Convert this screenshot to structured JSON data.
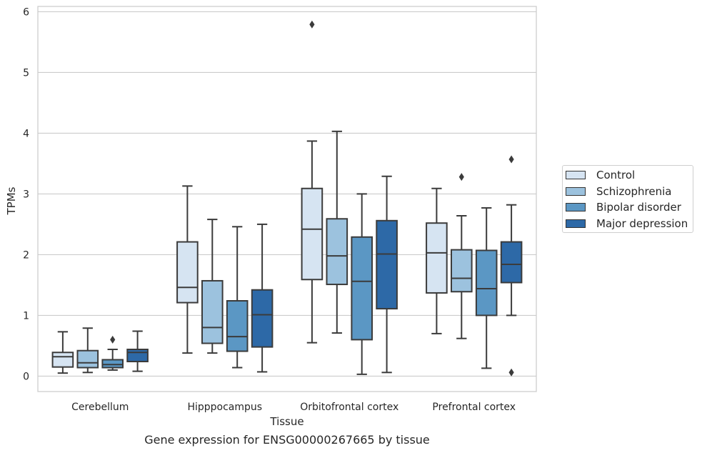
{
  "chart_data": {
    "type": "box",
    "title": "",
    "xlabel": "Tissue",
    "ylabel": "TPMs",
    "caption": "Gene expression for ENSG00000267665 by tissue",
    "ylim": [
      -0.25,
      6.1
    ],
    "yticks": [
      "0",
      "1",
      "2",
      "3",
      "4",
      "5",
      "6"
    ],
    "grid": "horizontal",
    "legend_position": "right",
    "categories": [
      "Cerebellum",
      "Hipppocampus",
      "Orbitofrontal cortex",
      "Prefrontal cortex"
    ],
    "series": [
      {
        "name": "Control",
        "color": "#d6e4f2",
        "boxes": [
          {
            "whislo": 0.05,
            "q1": 0.15,
            "med": 0.32,
            "q3": 0.39,
            "whishi": 0.73,
            "fliers": []
          },
          {
            "whislo": 0.38,
            "q1": 1.21,
            "med": 1.46,
            "q3": 2.21,
            "whishi": 3.13,
            "fliers": []
          },
          {
            "whislo": 0.55,
            "q1": 1.59,
            "med": 2.42,
            "q3": 3.09,
            "whishi": 3.87,
            "fliers": [
              5.79
            ]
          },
          {
            "whislo": 0.7,
            "q1": 1.37,
            "med": 2.03,
            "q3": 2.52,
            "whishi": 3.09,
            "fliers": []
          }
        ]
      },
      {
        "name": "Schizophrenia",
        "color": "#9cc2de",
        "boxes": [
          {
            "whislo": 0.06,
            "q1": 0.14,
            "med": 0.22,
            "q3": 0.42,
            "whishi": 0.79,
            "fliers": []
          },
          {
            "whislo": 0.38,
            "q1": 0.54,
            "med": 0.8,
            "q3": 1.57,
            "whishi": 2.58,
            "fliers": []
          },
          {
            "whislo": 0.71,
            "q1": 1.51,
            "med": 1.98,
            "q3": 2.59,
            "whishi": 4.03,
            "fliers": []
          },
          {
            "whislo": 0.62,
            "q1": 1.39,
            "med": 1.61,
            "q3": 2.08,
            "whishi": 2.64,
            "fliers": [
              3.28
            ]
          }
        ]
      },
      {
        "name": "Bipolar disorder",
        "color": "#5b97c4",
        "boxes": [
          {
            "whislo": 0.1,
            "q1": 0.14,
            "med": 0.19,
            "q3": 0.27,
            "whishi": 0.44,
            "fliers": [
              0.6
            ]
          },
          {
            "whislo": 0.14,
            "q1": 0.41,
            "med": 0.65,
            "q3": 1.24,
            "whishi": 2.46,
            "fliers": []
          },
          {
            "whislo": 0.03,
            "q1": 0.6,
            "med": 1.56,
            "q3": 2.29,
            "whishi": 3.0,
            "fliers": []
          },
          {
            "whislo": 0.13,
            "q1": 1.0,
            "med": 1.44,
            "q3": 2.07,
            "whishi": 2.77,
            "fliers": []
          }
        ]
      },
      {
        "name": "Major depression",
        "color": "#2d69a7",
        "boxes": [
          {
            "whislo": 0.08,
            "q1": 0.24,
            "med": 0.39,
            "q3": 0.44,
            "whishi": 0.74,
            "fliers": []
          },
          {
            "whislo": 0.07,
            "q1": 0.48,
            "med": 1.01,
            "q3": 1.42,
            "whishi": 2.5,
            "fliers": []
          },
          {
            "whislo": 0.06,
            "q1": 1.11,
            "med": 2.01,
            "q3": 2.56,
            "whishi": 3.29,
            "fliers": []
          },
          {
            "whislo": 1.0,
            "q1": 1.54,
            "med": 1.84,
            "q3": 2.21,
            "whishi": 2.82,
            "fliers": [
              3.57,
              0.06
            ]
          }
        ]
      }
    ]
  }
}
